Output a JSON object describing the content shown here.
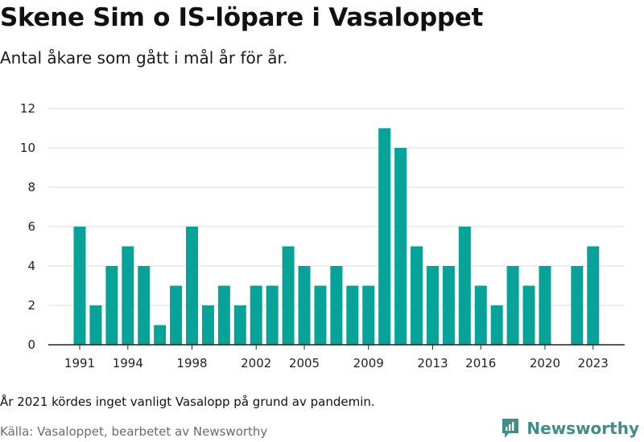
{
  "title": "Skene Sim o IS-löpare i Vasaloppet",
  "subtitle": "Antal åkare som gått i mål år för år.",
  "note": "År 2021 kördes inget vanligt Vasalopp på grund av pandemin.",
  "source": "Källa: Vasaloppet, bearbetet av Newsworthy",
  "brand": {
    "name": "Newsworthy",
    "icon": "newsworthy-logo-icon",
    "color": "#3e8e8a"
  },
  "chart_data": {
    "type": "bar",
    "categories": [
      1991,
      1992,
      1993,
      1994,
      1995,
      1996,
      1997,
      1998,
      1999,
      2000,
      2001,
      2002,
      2003,
      2004,
      2005,
      2006,
      2007,
      2008,
      2009,
      2010,
      2011,
      2012,
      2013,
      2014,
      2015,
      2016,
      2017,
      2018,
      2019,
      2020,
      2021,
      2022,
      2023
    ],
    "values": [
      6,
      2,
      4,
      5,
      4,
      1,
      3,
      6,
      2,
      3,
      2,
      3,
      3,
      5,
      4,
      3,
      4,
      3,
      3,
      11,
      10,
      5,
      4,
      4,
      6,
      3,
      2,
      4,
      3,
      4,
      null,
      4,
      5
    ],
    "x_tick_labels": [
      "1991",
      "1994",
      "1998",
      "2002",
      "2005",
      "2009",
      "2013",
      "2016",
      "2020",
      "2023"
    ],
    "y_ticks": [
      0,
      2,
      4,
      6,
      8,
      10,
      12
    ],
    "ylim": [
      0,
      12
    ],
    "grid": true,
    "bar_color": "#07a398"
  }
}
